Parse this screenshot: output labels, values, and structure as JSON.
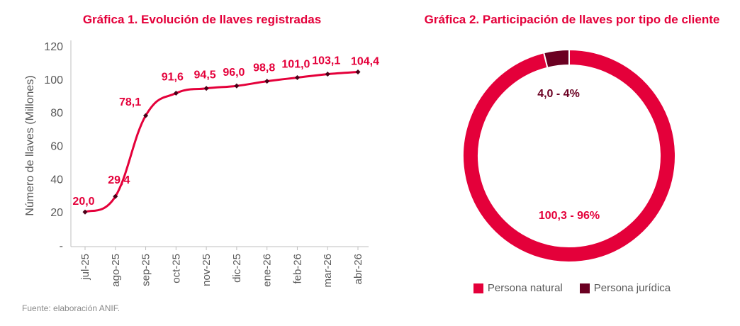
{
  "source": "Fuente: elaboración ANIF.",
  "colors": {
    "primary": "#e4003a",
    "secondary": "#6b0022",
    "axis": "#595959"
  },
  "chart_data": [
    {
      "type": "line",
      "title": "Gráfica 1. Evolución de llaves registradas",
      "xlabel": "",
      "ylabel": "Número de llaves (Millones)",
      "categories": [
        "jul-25",
        "ago-25",
        "sep-25",
        "oct-25",
        "nov-25",
        "dic-25",
        "ene-26",
        "feb-26",
        "mar-26",
        "abr-26"
      ],
      "values": [
        20.0,
        29.4,
        78.1,
        91.6,
        94.5,
        96.0,
        98.8,
        101.0,
        103.1,
        104.4
      ],
      "data_labels": [
        "20,0",
        "29,4",
        "78,1",
        "91,6",
        "94,5",
        "96,0",
        "98,8",
        "101,0",
        "103,1",
        "104,4"
      ],
      "ylim": [
        0,
        120
      ],
      "yticks": [
        "-",
        "20",
        "40",
        "60",
        "80",
        "100",
        "120"
      ],
      "grid": false
    },
    {
      "type": "pie",
      "title": "Gráfica 2. Participación de llaves por tipo de cliente",
      "categories": [
        "Persona natural",
        "Persona jurídica"
      ],
      "values": [
        100.3,
        4.0
      ],
      "percents": [
        96,
        4
      ],
      "data_labels": [
        "100,3 - 96%",
        "4,0 - 4%"
      ],
      "legend": "bottom"
    }
  ]
}
